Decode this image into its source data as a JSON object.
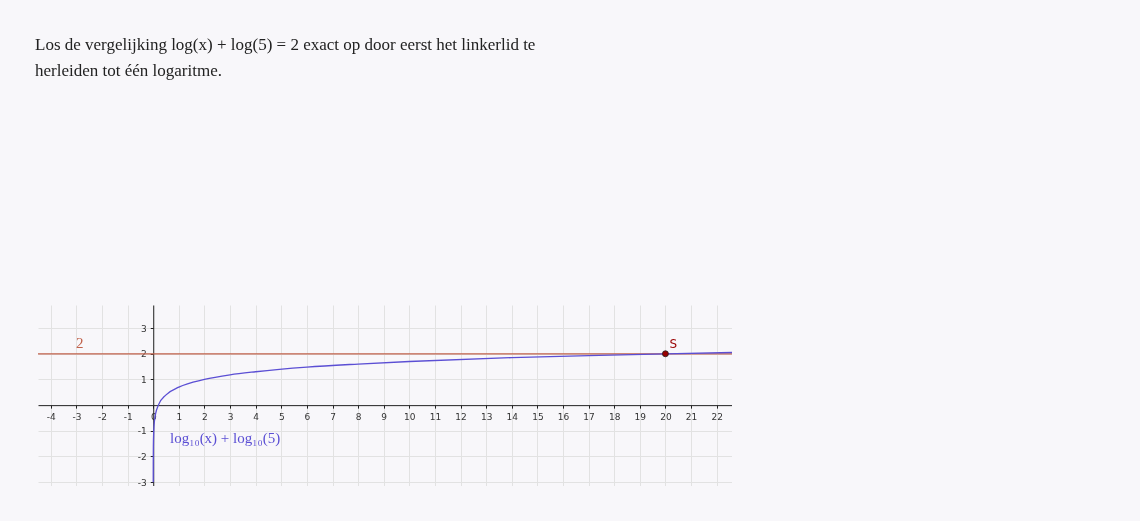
{
  "chart_data": {
    "type": "line",
    "title": "Los de vergelijking log(x) + log(5) = 2 exact op door eerst het linkerlid te herleiden tot één logaritme.",
    "xlim": [
      -4.5,
      22.6
    ],
    "ylim": [
      -3.15,
      3.9
    ],
    "xticks": [
      -4,
      -3,
      -2,
      -1,
      0,
      1,
      2,
      3,
      4,
      5,
      6,
      7,
      8,
      9,
      10,
      11,
      12,
      13,
      14,
      15,
      16,
      17,
      18,
      19,
      20,
      21,
      22
    ],
    "yticks": [
      -3,
      -2,
      -1,
      1,
      2,
      3
    ],
    "grid": true,
    "series": [
      {
        "name": "log₁₀(x) + log₁₀(5)",
        "color": "#5b4fd4",
        "type": "line",
        "marker": "none",
        "x": [
          0.0002,
          0.001,
          0.005,
          0.02,
          0.05,
          0.1,
          0.2,
          0.5,
          1,
          2,
          3,
          4,
          6,
          8,
          10,
          14,
          17,
          20,
          22.6
        ],
        "values": [
          -3.0,
          -2.3,
          -1.6,
          -1.0,
          -0.6,
          -0.3,
          0,
          0.4,
          0.7,
          1.0,
          1.18,
          1.3,
          1.48,
          1.6,
          1.7,
          1.85,
          1.93,
          2.0,
          2.05
        ]
      },
      {
        "name": "S",
        "color": "#990000",
        "type": "scatter",
        "marker": "circle",
        "x": [
          20
        ],
        "values": [
          2
        ]
      }
    ],
    "ref_lines": [
      {
        "axis": "y",
        "value": 2,
        "label": "2",
        "color": "#c0614a"
      }
    ]
  }
}
